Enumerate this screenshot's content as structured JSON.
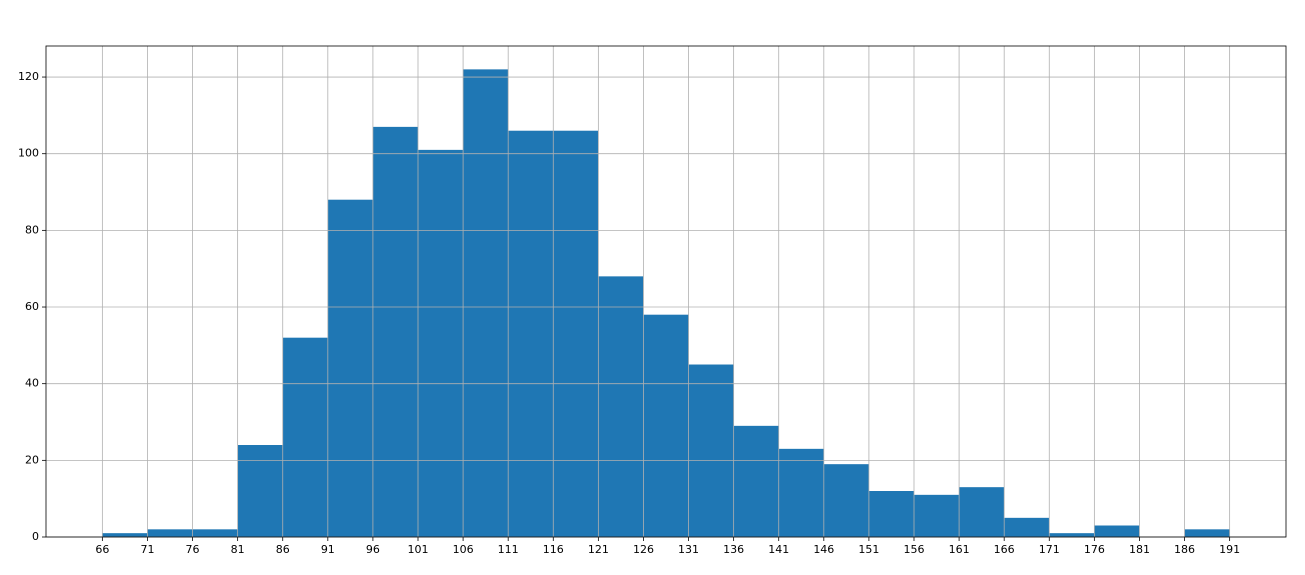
{
  "chart_data": {
    "type": "histogram",
    "bins": [
      66,
      71,
      76,
      81,
      86,
      91,
      96,
      101,
      106,
      111,
      116,
      121,
      126,
      131,
      136,
      141,
      146,
      151,
      156,
      161,
      166,
      171,
      176,
      181,
      186,
      191
    ],
    "values": [
      1,
      2,
      2,
      24,
      52,
      88,
      107,
      101,
      122,
      106,
      106,
      68,
      58,
      45,
      29,
      23,
      19,
      12,
      11,
      13,
      5,
      1,
      3,
      0,
      2
    ],
    "color": "#1f77b4",
    "xlim": [
      59.75,
      197.25
    ],
    "xticks": [
      66,
      71,
      76,
      81,
      86,
      91,
      96,
      101,
      106,
      111,
      116,
      121,
      126,
      131,
      136,
      141,
      146,
      151,
      156,
      161,
      166,
      171,
      176,
      181,
      186,
      191
    ],
    "ylim": [
      0,
      128.1
    ],
    "yticks": [
      0,
      20,
      40,
      60,
      80,
      100,
      120
    ],
    "grid": true
  }
}
